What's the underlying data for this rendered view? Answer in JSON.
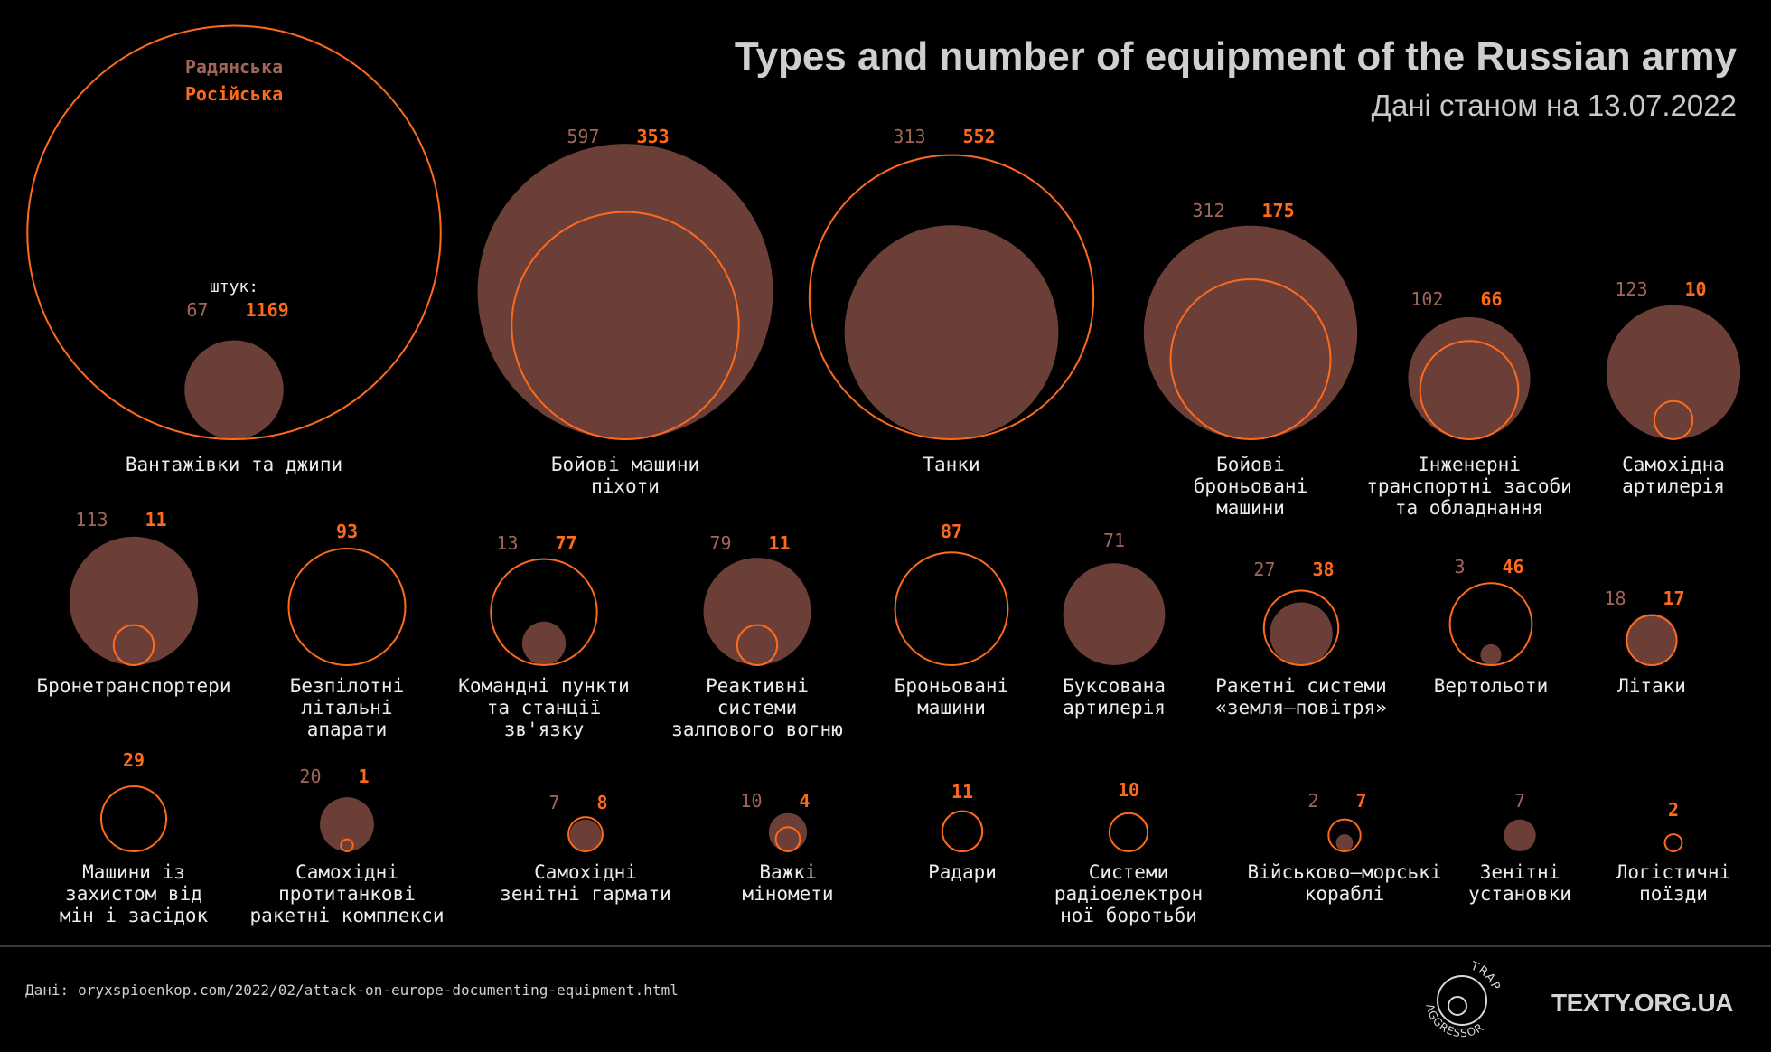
{
  "header": {
    "title": "Types and number of equipment of the Russian army",
    "subtitle": "Дані станом на 13.07.2022"
  },
  "legend": {
    "soviet": "Радянська",
    "russian": "Російська",
    "unit_label": "штук:"
  },
  "colors": {
    "soviet_fill": "#6b3f38",
    "russian_stroke": "#ff6a1a",
    "soviet_text": "#a0665a",
    "russian_text": "#ff6a1a",
    "background": "#000000"
  },
  "chart_data": {
    "type": "bubble",
    "title": "Types and number of equipment of the Russian army",
    "subtitle": "Дані станом на 13.07.2022",
    "series": [
      {
        "name": "Радянська",
        "encoding": "filled circle"
      },
      {
        "name": "Російська",
        "encoding": "outlined circle"
      }
    ],
    "categories": [
      {
        "label": [
          "Вантажівки та джипи"
        ],
        "soviet": 67,
        "russian": 1169
      },
      {
        "label": [
          "Бойові машини",
          "піхоти"
        ],
        "soviet": 597,
        "russian": 353
      },
      {
        "label": [
          "Танки"
        ],
        "soviet": 313,
        "russian": 552
      },
      {
        "label": [
          "Бойові",
          "броньовані",
          "машини"
        ],
        "soviet": 312,
        "russian": 175
      },
      {
        "label": [
          "Інженерні",
          "транспортні засоби",
          "та обладнання"
        ],
        "soviet": 102,
        "russian": 66
      },
      {
        "label": [
          "Самохідна",
          "артилерія"
        ],
        "soviet": 123,
        "russian": 10
      },
      {
        "label": [
          "Бронетранспортери"
        ],
        "soviet": 113,
        "russian": 11
      },
      {
        "label": [
          "Безпілотні",
          "літальні",
          "апарати"
        ],
        "soviet": null,
        "russian": 93
      },
      {
        "label": [
          "Командні пункти",
          "та станції",
          "зв'язку"
        ],
        "soviet": 13,
        "russian": 77
      },
      {
        "label": [
          "Реактивні",
          "системи",
          "залпового вогню"
        ],
        "soviet": 79,
        "russian": 11
      },
      {
        "label": [
          "Броньовані",
          "машини"
        ],
        "soviet": null,
        "russian": 87
      },
      {
        "label": [
          "Буксована",
          "артилерія"
        ],
        "soviet": 71,
        "russian": null
      },
      {
        "label": [
          "Ракетні системи",
          "«земля–повітря»"
        ],
        "soviet": 27,
        "russian": 38
      },
      {
        "label": [
          "Вертольоти"
        ],
        "soviet": 3,
        "russian": 46
      },
      {
        "label": [
          "Літаки"
        ],
        "soviet": 18,
        "russian": 17
      },
      {
        "label": [
          "Машини із",
          "захистом від",
          "мін і засідок"
        ],
        "soviet": null,
        "russian": 29
      },
      {
        "label": [
          "Самохідні",
          "протитанкові",
          "ракетні комплекси"
        ],
        "soviet": 20,
        "russian": 1
      },
      {
        "label": [
          "Самохідні",
          "зенітні гармати"
        ],
        "soviet": 7,
        "russian": 8
      },
      {
        "label": [
          "Важкі",
          "міномети"
        ],
        "soviet": 10,
        "russian": 4
      },
      {
        "label": [
          "Радари"
        ],
        "soviet": null,
        "russian": 11
      },
      {
        "label": [
          "Системи",
          "радіоелектрон",
          "ної боротьби"
        ],
        "soviet": null,
        "russian": 10
      },
      {
        "label": [
          "Військово–морські",
          "кораблі"
        ],
        "soviet": 2,
        "russian": 7
      },
      {
        "label": [
          "Зенітні",
          "установки"
        ],
        "soviet": 7,
        "russian": null
      },
      {
        "label": [
          "Логістичні",
          "поїзди"
        ],
        "soviet": null,
        "russian": 2
      }
    ]
  },
  "footer": {
    "source_prefix": "Дані:",
    "source_url": "oryxspioenkop.com/2022/02/attack-on-europe-documenting-equipment.html",
    "badge_top": "TRAP",
    "badge_bottom": "AGGRESSOR",
    "logo_text": "TEXTY.ORG.UA"
  }
}
